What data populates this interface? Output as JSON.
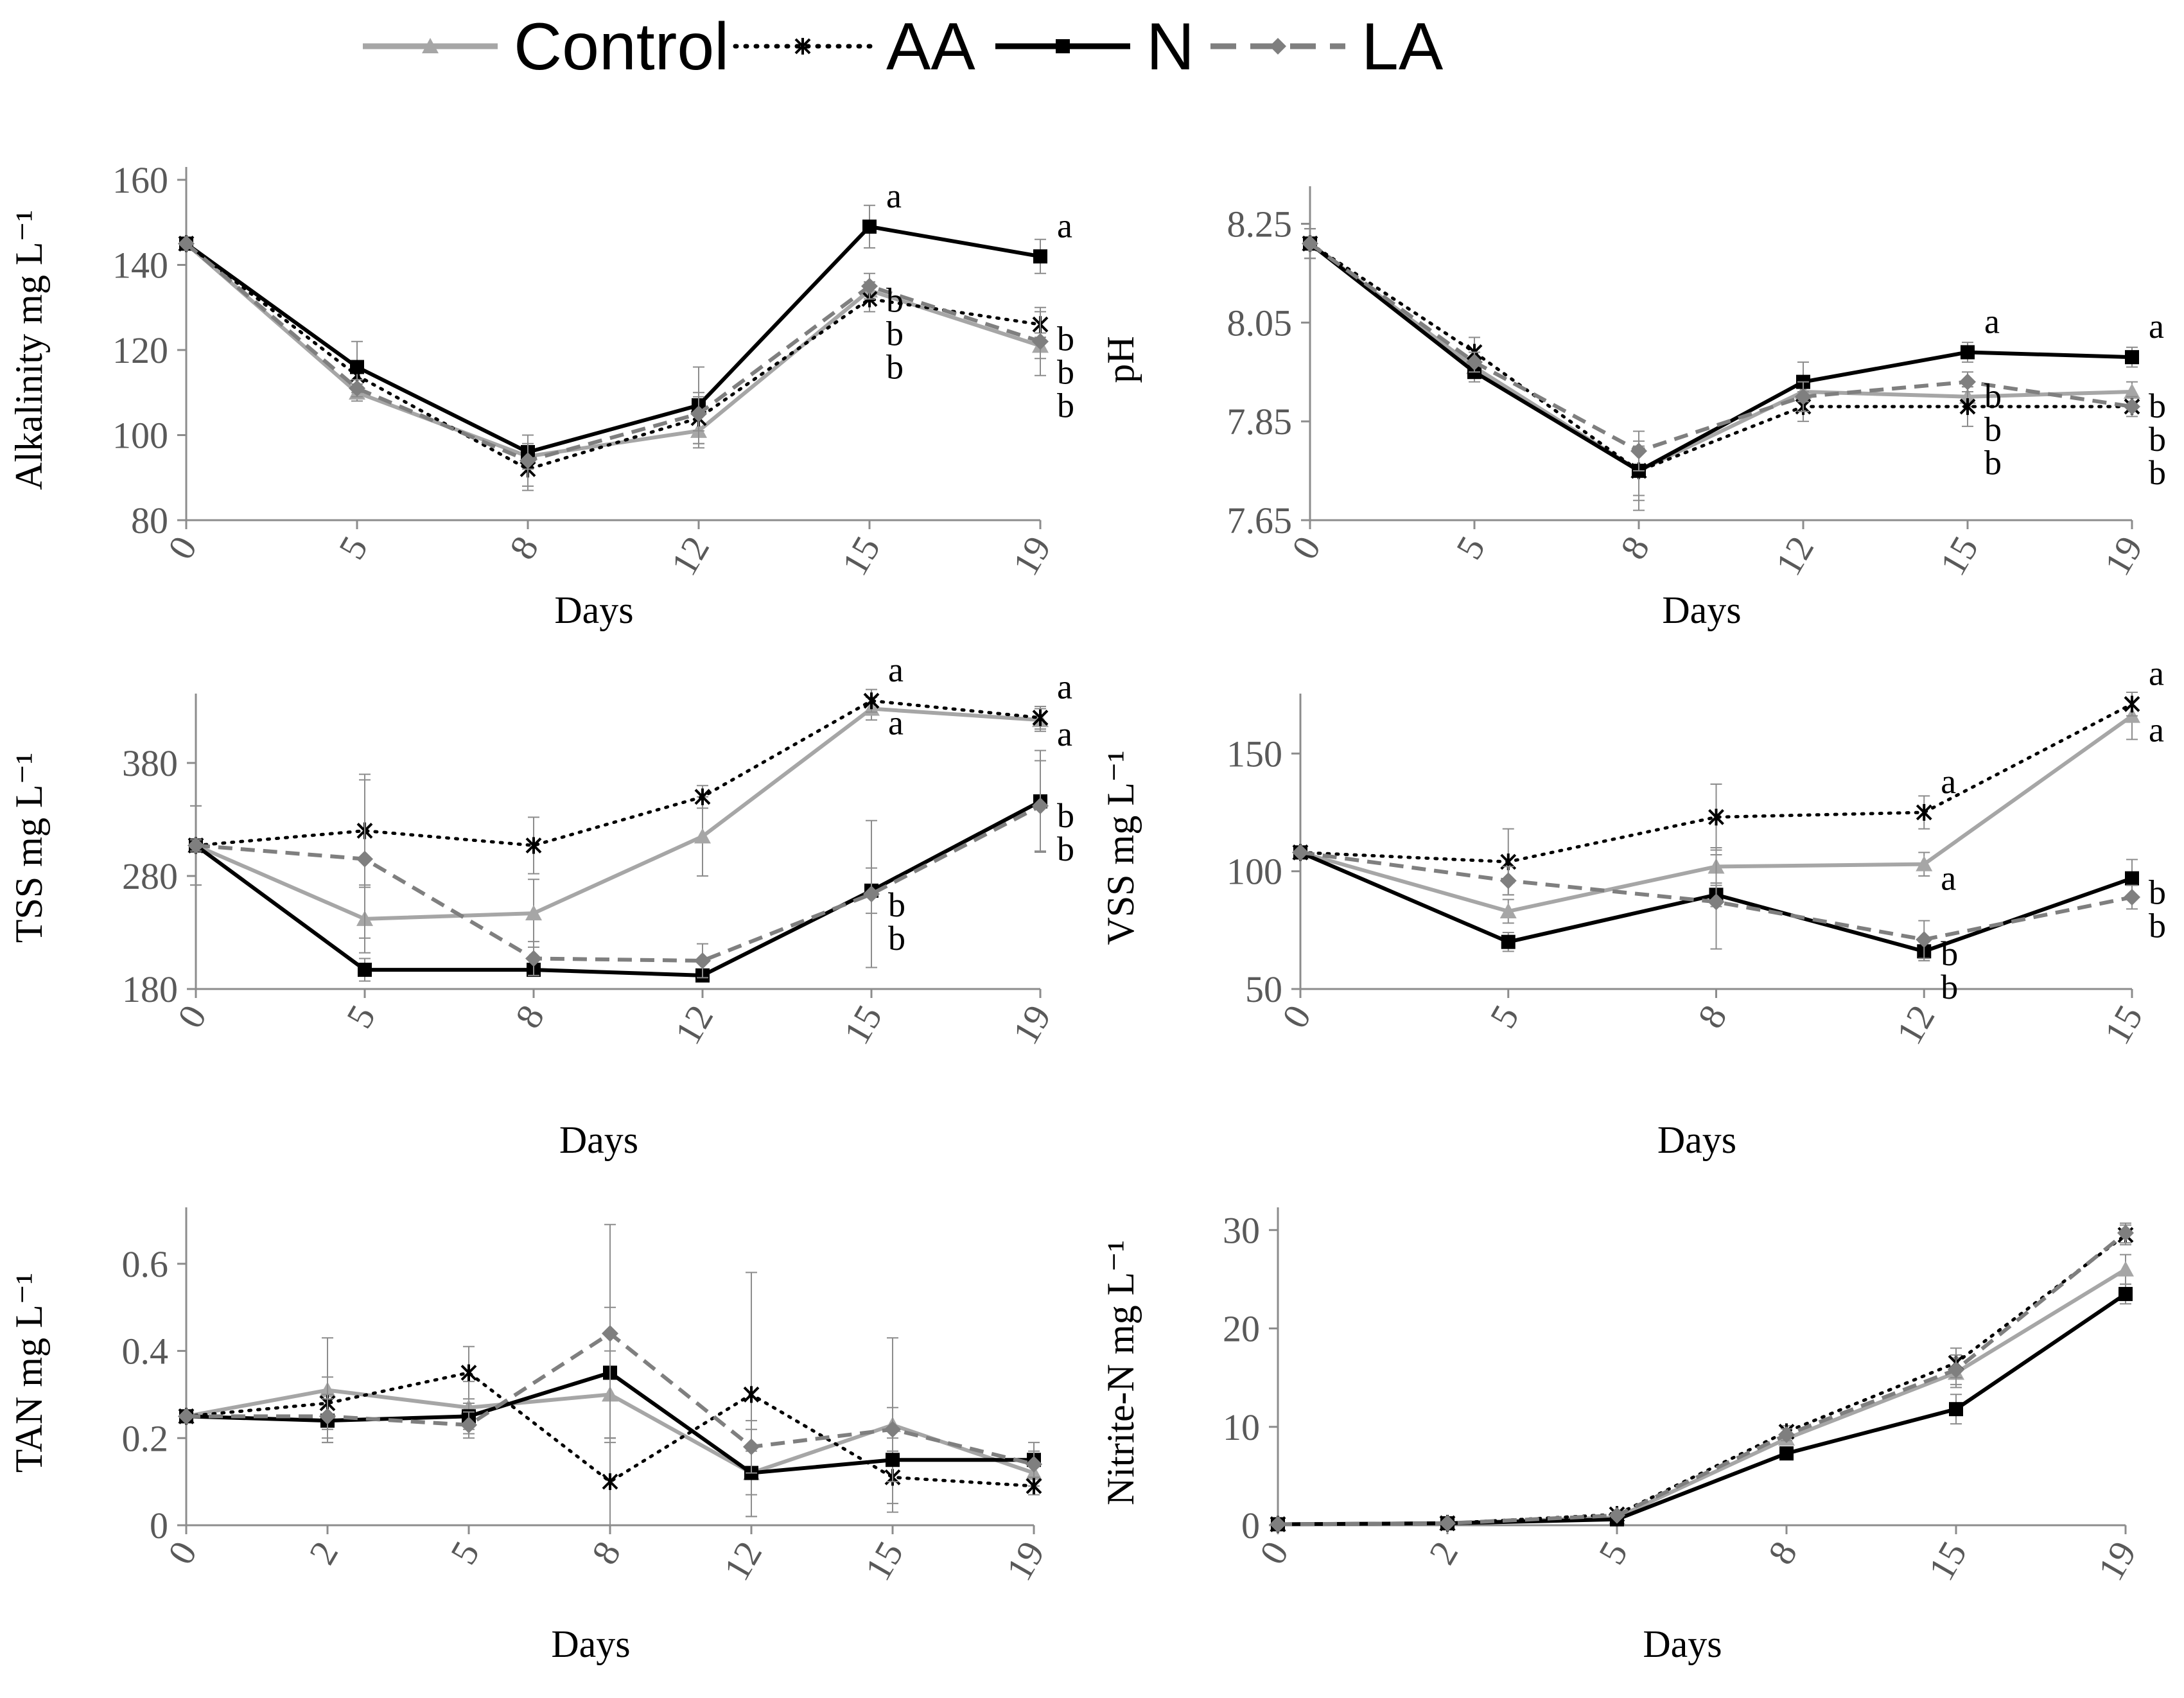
{
  "legend": {
    "items": [
      {
        "name": "Control",
        "color": "#a6a6a6",
        "dash": "solid",
        "marker": "triangle"
      },
      {
        "name": "AA",
        "color": "#000000",
        "dash": "dot",
        "marker": "star"
      },
      {
        "name": "N",
        "color": "#000000",
        "dash": "solid",
        "marker": "square"
      },
      {
        "name": "LA",
        "color": "#7f7f7f",
        "dash": "dash",
        "marker": "diamond"
      }
    ]
  },
  "chart_data": [
    {
      "type": "line",
      "ylabel": "Alkalinity mg L⁻¹",
      "xlabel": "Days",
      "categories": [
        "0",
        "5",
        "8",
        "12",
        "15",
        "19"
      ],
      "ylim": [
        80,
        160
      ],
      "yticks": [
        "80",
        "100",
        "120",
        "140",
        "160"
      ],
      "series": [
        {
          "name": "Control",
          "values": [
            145,
            110,
            95,
            101,
            134,
            121
          ],
          "errors": [
            0,
            2,
            3,
            4,
            2,
            3
          ]
        },
        {
          "name": "AA",
          "values": [
            145,
            114,
            92,
            104,
            132,
            126
          ],
          "errors": [
            0,
            3,
            5,
            6,
            3,
            3
          ]
        },
        {
          "name": "N",
          "values": [
            145,
            116,
            96,
            107,
            149,
            142
          ],
          "errors": [
            0,
            6,
            4,
            9,
            5,
            4
          ]
        },
        {
          "name": "LA",
          "values": [
            145,
            111,
            94,
            105,
            135,
            122
          ],
          "errors": [
            0,
            2,
            6,
            4,
            3,
            8
          ]
        }
      ],
      "annotations": [
        {
          "category": "15",
          "labels": [
            "a",
            "b",
            "b",
            "b"
          ]
        },
        {
          "category": "19",
          "labels": [
            "a",
            "b",
            "b",
            "b"
          ]
        }
      ]
    },
    {
      "type": "line",
      "ylabel": "pH",
      "xlabel": "Days",
      "categories": [
        "0",
        "5",
        "8",
        "12",
        "15",
        "19"
      ],
      "ylim": [
        7.65,
        8.3
      ],
      "yticks": [
        "7.65",
        "7.85",
        "8.05",
        "8.25"
      ],
      "series": [
        {
          "name": "Control",
          "values": [
            8.21,
            7.96,
            7.75,
            7.91,
            7.9,
            7.91
          ],
          "errors": [
            0.03,
            0.02,
            0.06,
            0.02,
            0.02,
            0.02
          ]
        },
        {
          "name": "AA",
          "values": [
            8.21,
            7.99,
            7.75,
            7.88,
            7.88,
            7.88
          ],
          "errors": [
            0.03,
            0.03,
            0.08,
            0.03,
            0.04,
            0.02
          ]
        },
        {
          "name": "N",
          "values": [
            8.21,
            7.95,
            7.75,
            7.93,
            7.99,
            7.98
          ],
          "errors": [
            0.03,
            0.02,
            0.05,
            0.04,
            0.02,
            0.02
          ]
        },
        {
          "name": "LA",
          "values": [
            8.21,
            7.97,
            7.79,
            7.9,
            7.93,
            7.88
          ],
          "errors": [
            0.03,
            0.02,
            0.04,
            0.03,
            0.02,
            0.02
          ]
        }
      ],
      "annotations": [
        {
          "category": "15",
          "labels": [
            "a",
            "b",
            "b",
            "b"
          ]
        },
        {
          "category": "19",
          "labels": [
            "a",
            "b",
            "b",
            "b"
          ]
        }
      ]
    },
    {
      "type": "line",
      "ylabel": "TSS mg L⁻¹",
      "xlabel": "Days",
      "categories": [
        "0",
        "5",
        "8",
        "12",
        "15",
        "19"
      ],
      "ylim": [
        180,
        430
      ],
      "yticks": [
        "180",
        "280",
        "380"
      ],
      "series": [
        {
          "name": "Control",
          "values": [
            307,
            242,
            247,
            315,
            428,
            418
          ],
          "errors": [
            35,
            30,
            30,
            35,
            10,
            10
          ]
        },
        {
          "name": "AA",
          "values": [
            307,
            320,
            307,
            350,
            435,
            420
          ],
          "errors": [
            35,
            50,
            25,
            10,
            10,
            10
          ]
        },
        {
          "name": "N",
          "values": [
            307,
            197,
            197,
            192,
            267,
            346
          ],
          "errors": [
            5,
            10,
            5,
            5,
            20,
            45
          ]
        },
        {
          "name": "LA",
          "values": [
            307,
            295,
            207,
            205,
            264,
            342
          ],
          "errors": [
            5,
            70,
            15,
            15,
            65,
            40
          ]
        }
      ],
      "annotations": [
        {
          "category": "15",
          "labels": [
            "a",
            "a",
            "b",
            "b"
          ]
        },
        {
          "category": "19",
          "labels": [
            "a",
            "a",
            "b",
            "b"
          ]
        }
      ]
    },
    {
      "type": "line",
      "ylabel": "VSS mg L⁻¹",
      "xlabel": "Days",
      "categories": [
        "0",
        "5",
        "8",
        "12",
        "15"
      ],
      "ylim": [
        50,
        170
      ],
      "yticks": [
        "50",
        "100",
        "150"
      ],
      "series": [
        {
          "name": "Control",
          "values": [
            108,
            83,
            102,
            103,
            166
          ],
          "errors": [
            0,
            5,
            8,
            5,
            10
          ]
        },
        {
          "name": "AA",
          "values": [
            108,
            104,
            123,
            125,
            171
          ],
          "errors": [
            0,
            14,
            14,
            7,
            5
          ]
        },
        {
          "name": "N",
          "values": [
            108,
            70,
            90,
            66,
            97
          ],
          "errors": [
            0,
            4,
            5,
            4,
            8
          ]
        },
        {
          "name": "LA",
          "values": [
            108,
            96,
            87,
            71,
            89
          ],
          "errors": [
            0,
            6,
            20,
            8,
            5
          ]
        }
      ],
      "annotations": [
        {
          "category": "12",
          "labels": [
            "a",
            "a",
            "b",
            "b"
          ]
        },
        {
          "category": "15",
          "labels": [
            "a",
            "a",
            "b",
            "b"
          ]
        }
      ]
    },
    {
      "type": "line",
      "ylabel": "TAN mg L⁻¹",
      "xlabel": "Days",
      "categories": [
        "0",
        "2",
        "5",
        "8",
        "12",
        "15",
        "19"
      ],
      "ylim": [
        0,
        0.7
      ],
      "yticks": [
        "0",
        "0.2",
        "0.4",
        "0.6"
      ],
      "series": [
        {
          "name": "Control",
          "values": [
            0.25,
            0.31,
            0.27,
            0.3,
            0.12,
            0.23,
            0.12
          ],
          "errors": [
            0,
            0.12,
            0.06,
            0.1,
            0.05,
            0.2,
            0.03
          ]
        },
        {
          "name": "AA",
          "values": [
            0.25,
            0.28,
            0.35,
            0.1,
            0.3,
            0.11,
            0.09
          ],
          "errors": [
            0,
            0.06,
            0.06,
            0.1,
            0.28,
            0.06,
            0.02
          ]
        },
        {
          "name": "N",
          "values": [
            0.25,
            0.24,
            0.25,
            0.35,
            0.12,
            0.15,
            0.15
          ],
          "errors": [
            0,
            0.05,
            0.03,
            0.15,
            0.1,
            0.05,
            0.04
          ]
        },
        {
          "name": "LA",
          "values": [
            0.25,
            0.25,
            0.23,
            0.44,
            0.18,
            0.22,
            0.14
          ],
          "errors": [
            0,
            0.05,
            0.03,
            0.25,
            0.06,
            0.05,
            0.03
          ]
        }
      ]
    },
    {
      "type": "line",
      "ylabel": "Nitrite-N mg L⁻¹",
      "xlabel": "Days",
      "categories": [
        "0",
        "2",
        "5",
        "8",
        "15",
        "19"
      ],
      "ylim": [
        0,
        31
      ],
      "yticks": [
        "0",
        "10",
        "20",
        "30"
      ],
      "series": [
        {
          "name": "Control",
          "values": [
            0.1,
            0.2,
            0.8,
            8.8,
            15.5,
            26.0
          ],
          "errors": [
            0,
            0,
            0.2,
            0.6,
            1.5,
            1.5
          ]
        },
        {
          "name": "AA",
          "values": [
            0.1,
            0.2,
            1.1,
            9.5,
            16.5,
            29.5
          ],
          "errors": [
            0,
            0,
            0.2,
            0.6,
            1.5,
            1.0
          ]
        },
        {
          "name": "N",
          "values": [
            0.1,
            0.2,
            0.6,
            7.3,
            11.8,
            23.5
          ],
          "errors": [
            0,
            0,
            0.2,
            0.6,
            1.5,
            1.0
          ]
        },
        {
          "name": "LA",
          "values": [
            0.1,
            0.2,
            1.0,
            9.2,
            15.8,
            29.7
          ],
          "errors": [
            0,
            0,
            0.2,
            0.6,
            1.5,
            1.0
          ]
        }
      ]
    }
  ]
}
